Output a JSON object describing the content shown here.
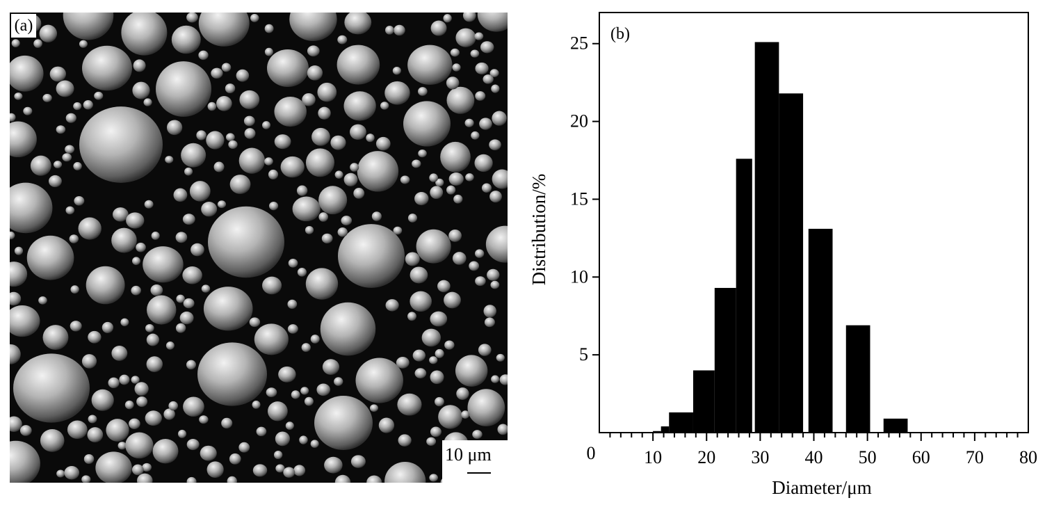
{
  "panel_a": {
    "label": "(a)",
    "scale_bar_text": "10 μm"
  },
  "chart_data": {
    "type": "bar",
    "panel_label": "(b)",
    "title": "",
    "xlabel": "Diameter/μm",
    "ylabel": "Distribution/%",
    "xlim": [
      0,
      80
    ],
    "ylim": [
      0,
      27
    ],
    "xticks": [
      10,
      20,
      30,
      40,
      50,
      60,
      70,
      80
    ],
    "yticks": [
      5,
      10,
      15,
      20,
      25
    ],
    "origin_label": "0",
    "grid": false,
    "bars": [
      {
        "x0": 10.0,
        "x1": 11.5,
        "value": 0.1
      },
      {
        "x0": 11.5,
        "x1": 13.0,
        "value": 0.4
      },
      {
        "x0": 13.0,
        "x1": 17.5,
        "value": 1.3
      },
      {
        "x0": 17.5,
        "x1": 21.5,
        "value": 4.0
      },
      {
        "x0": 21.5,
        "x1": 25.5,
        "value": 9.3
      },
      {
        "x0": 25.5,
        "x1": 28.5,
        "value": 17.6
      },
      {
        "x0": 29.0,
        "x1": 33.5,
        "value": 25.1
      },
      {
        "x0": 33.5,
        "x1": 38.0,
        "value": 21.8
      },
      {
        "x0": 39.0,
        "x1": 43.5,
        "value": 13.1
      },
      {
        "x0": 46.0,
        "x1": 50.5,
        "value": 6.9
      },
      {
        "x0": 53.0,
        "x1": 57.5,
        "value": 0.9
      }
    ],
    "bar_color": "#000000"
  }
}
